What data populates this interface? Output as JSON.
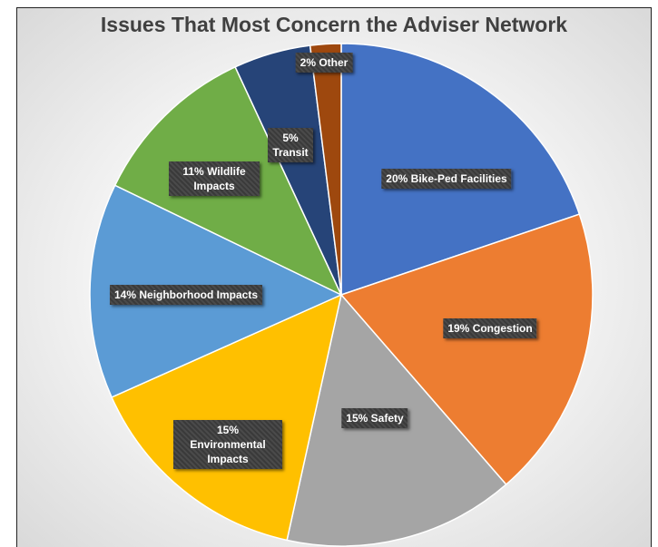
{
  "chart_data": {
    "type": "pie",
    "title": "Issues That Most Concern the Adviser Network",
    "categories": [
      "Bike-Ped Facilities",
      "Congestion",
      "Safety",
      "Environmental Impacts",
      "Neighborhood Impacts",
      "Wildlife Impacts",
      "Transit",
      "Other"
    ],
    "values": [
      20,
      19,
      15,
      15,
      14,
      11,
      5,
      2
    ],
    "value_labels": [
      "20%",
      "19%",
      "15%",
      "15%",
      "14%",
      "11%",
      "5%",
      "2%"
    ],
    "colors": [
      "#4472c4",
      "#ed7d31",
      "#a5a5a5",
      "#ffc000",
      "#5b9bd5",
      "#70ad47",
      "#264478",
      "#9e480e"
    ]
  }
}
